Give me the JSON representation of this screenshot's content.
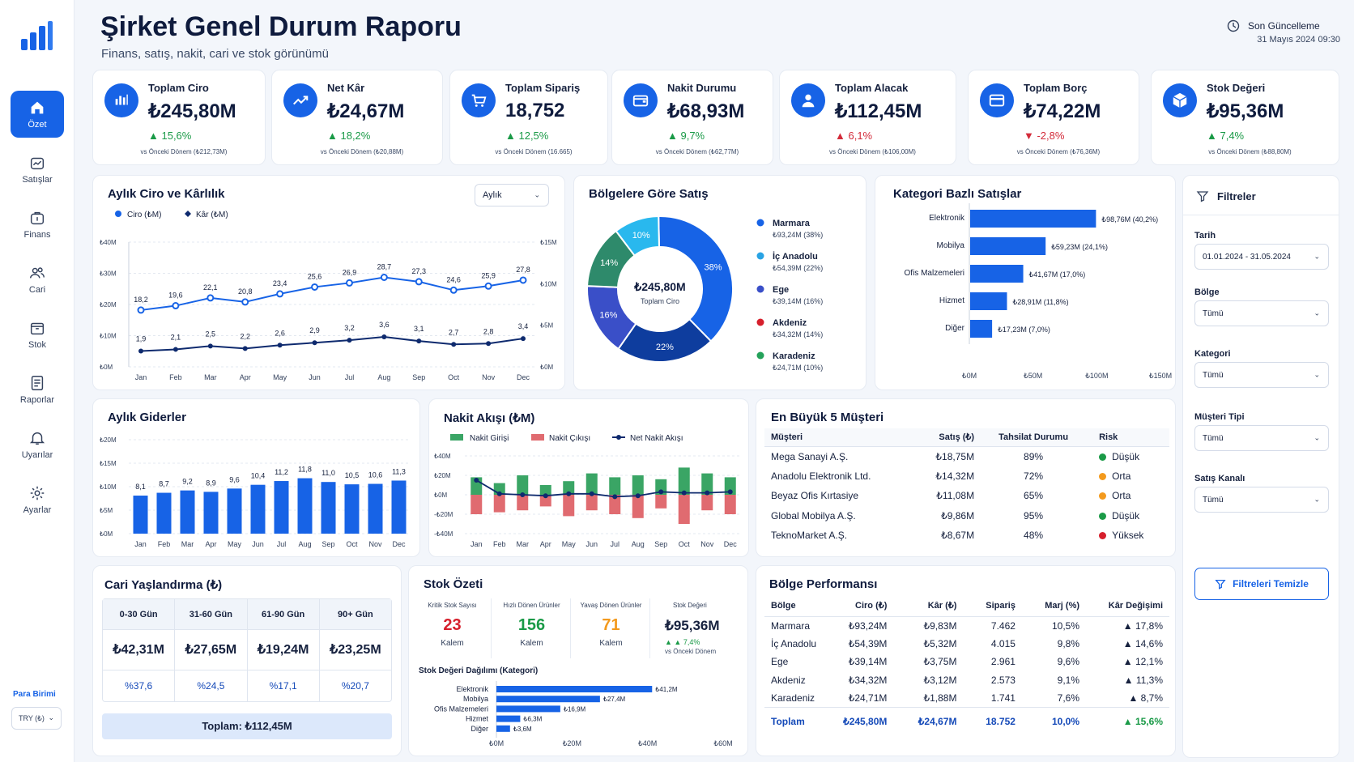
{
  "nav": {
    "items": [
      {
        "label": "Özet",
        "icon": "home-icon",
        "active": true
      },
      {
        "label": "Satışlar",
        "icon": "sales-icon"
      },
      {
        "label": "Finans",
        "icon": "finance-icon"
      },
      {
        "label": "Cari",
        "icon": "users-icon"
      },
      {
        "label": "Stok",
        "icon": "box-icon"
      },
      {
        "label": "Raporlar",
        "icon": "report-icon"
      },
      {
        "label": "Uyarılar",
        "icon": "bell-icon"
      },
      {
        "label": "Ayarlar",
        "icon": "gear-icon"
      }
    ],
    "currency_label": "Para Birimi",
    "currency_value": "TRY (₺)"
  },
  "header": {
    "title": "Şirket Genel Durum Raporu",
    "subtitle": "Finans, satış, nakit, cari ve stok görünümü",
    "updated_label": "Son Güncelleme",
    "updated_value": "31 Mayıs 2024 09:30"
  },
  "kpis": [
    {
      "title": "Toplam Ciro",
      "value": "₺245,80M",
      "change": "▲ 15,6%",
      "prev": "vs Önceki Dönem  (₺212,73M)",
      "icon": "bar-chart-icon",
      "neg": false
    },
    {
      "title": "Net Kâr",
      "value": "₺24,67M",
      "change": "▲ 18,2%",
      "prev": "vs Önceki Dönem  (₺20,88M)",
      "icon": "trend-up-icon",
      "neg": false
    },
    {
      "title": "Toplam Sipariş",
      "value": "18,752",
      "change": "▲ 12,5%",
      "prev": "vs Önceki Dönem  (16.665)",
      "icon": "cart-icon",
      "neg": false
    },
    {
      "title": "Nakit Durumu",
      "value": "₺68,93M",
      "change": "▲ 9,7%",
      "prev": "vs Önceki Dönem  (₺62,77M)",
      "icon": "wallet-icon",
      "neg": false
    },
    {
      "title": "Toplam Alacak",
      "value": "₺112,45M",
      "change": "▲ 6,1%",
      "prev": "vs Önceki Dönem  (₺106,00M)",
      "icon": "user-icon",
      "neg": true
    },
    {
      "title": "Toplam Borç",
      "value": "₺74,22M",
      "change": "▼ -2,8%",
      "prev": "vs Önceki Dönem  (₺76,36M)",
      "icon": "card-icon",
      "neg": true
    },
    {
      "title": "Stok Değeri",
      "value": "₺95,36M",
      "change": "▲ 7,4%",
      "prev": "vs Önceki Dönem  (₺88,80M)",
      "icon": "cube-icon",
      "neg": false
    }
  ],
  "monthly": {
    "title": "Aylık Ciro ve Kârlılık",
    "period": "Aylık",
    "legend_ciro": "Ciro (₺M)",
    "legend_kar": "Kâr (₺M)",
    "left_ticks": [
      "₺40M",
      "₺30M",
      "₺20M",
      "₺10M",
      "₺0M"
    ],
    "right_ticks": [
      "₺15M",
      "₺10M",
      "₺5M",
      "₺0M"
    ]
  },
  "regions_pie": {
    "title": "Bölgelere Göre Satış",
    "center_value": "₺245,80M",
    "center_label": "Toplam Ciro",
    "legend": [
      {
        "name": "Marmara",
        "detail": "₺93,24M (38%)",
        "color": "#1763e6"
      },
      {
        "name": "İç Anadolu",
        "detail": "₺54,39M (22%)",
        "color": "#29a3e4"
      },
      {
        "name": "Ege",
        "detail": "₺39,14M (16%)",
        "color": "#3a4fc8"
      },
      {
        "name": "Akdeniz",
        "detail": "₺34,32M (14%)",
        "color": "#d61f2c"
      },
      {
        "name": "Karadeniz",
        "detail": "₺24,71M (10%)",
        "color": "#24a25a"
      }
    ]
  },
  "category": {
    "title": "Kategori Bazlı Satışlar",
    "ticks": [
      "₺0M",
      "₺50M",
      "₺100M",
      "₺150M"
    ]
  },
  "expenses": {
    "title": "Aylık Giderler",
    "ticks": [
      "₺20M",
      "₺15M",
      "₺10M",
      "₺5M",
      "₺0M"
    ]
  },
  "cashflow": {
    "title": "Nakit Akışı (₺M)",
    "legend_in": "Nakit Girişi",
    "legend_out": "Nakit Çıkışı",
    "legend_net": "Net Nakit Akışı",
    "ticks": [
      "₺40M",
      "₺20M",
      "₺0M",
      "-₺20M",
      "-₺40M"
    ]
  },
  "customers": {
    "title": "En Büyük 5 Müşteri",
    "headers": [
      "Müşteri",
      "Satış (₺)",
      "Tahsilat Durumu",
      "Risk"
    ],
    "rows": [
      {
        "name": "Mega Sanayi A.Ş.",
        "sales": "₺18,75M",
        "coll": "89%",
        "risk": "Düşük",
        "color": "#1a9a47"
      },
      {
        "name": "Anadolu Elektronik Ltd.",
        "sales": "₺14,32M",
        "coll": "72%",
        "risk": "Orta",
        "color": "#f39a1e"
      },
      {
        "name": "Beyaz Ofis Kırtasiye",
        "sales": "₺11,08M",
        "coll": "65%",
        "risk": "Orta",
        "color": "#f39a1e"
      },
      {
        "name": "Global Mobilya A.Ş.",
        "sales": "₺9,86M",
        "coll": "95%",
        "risk": "Düşük",
        "color": "#1a9a47"
      },
      {
        "name": "TeknoMarket A.Ş.",
        "sales": "₺8,67M",
        "coll": "48%",
        "risk": "Yüksek",
        "color": "#d61f2c"
      }
    ]
  },
  "aging": {
    "title": "Cari Yaşlandırma (₺)",
    "cols": [
      {
        "h": "0-30 Gün",
        "v": "₺42,31M",
        "p": "%37,6"
      },
      {
        "h": "31-60 Gün",
        "v": "₺27,65M",
        "p": "%24,5"
      },
      {
        "h": "61-90 Gün",
        "v": "₺19,24M",
        "p": "%17,1"
      },
      {
        "h": "90+ Gün",
        "v": "₺23,25M",
        "p": "%20,7"
      }
    ],
    "total": "Toplam: ₺112,45M"
  },
  "stock": {
    "title": "Stok Özeti",
    "kpis": [
      {
        "label": "Kritik Stok Sayısı",
        "value": "23",
        "unit": "Kalem",
        "color": "#d61f2c"
      },
      {
        "label": "Hızlı Dönen Ürünler",
        "value": "156",
        "unit": "Kalem",
        "color": "#1a9a47"
      },
      {
        "label": "Yavaş Dönen Ürünler",
        "value": "71",
        "unit": "Kalem",
        "color": "#f39a1e"
      }
    ],
    "value_label": "Stok Değeri",
    "value": "₺95,36M",
    "value_change": "▲ 7,4%",
    "value_prev": "vs Önceki Dönem",
    "dist_title": "Stok Değeri Dağılımı (Kategori)",
    "ticks": [
      "₺0M",
      "₺20M",
      "₺40M",
      "₺60M"
    ]
  },
  "regionperf": {
    "title": "Bölge Performansı",
    "headers": [
      "Bölge",
      "Ciro (₺)",
      "Kâr (₺)",
      "Sipariş",
      "Marj (%)",
      "Kâr Değişimi"
    ],
    "rows": [
      [
        "Marmara",
        "₺93,24M",
        "₺9,83M",
        "7.462",
        "10,5%",
        "▲ 17,8%"
      ],
      [
        "İç Anadolu",
        "₺54,39M",
        "₺5,32M",
        "4.015",
        "9,8%",
        "▲ 14,6%"
      ],
      [
        "Ege",
        "₺39,14M",
        "₺3,75M",
        "2.961",
        "9,6%",
        "▲ 12,1%"
      ],
      [
        "Akdeniz",
        "₺34,32M",
        "₺3,12M",
        "2.573",
        "9,1%",
        "▲ 11,3%"
      ],
      [
        "Karadeniz",
        "₺24,71M",
        "₺1,88M",
        "1.741",
        "7,6%",
        "▲ 8,7%"
      ]
    ],
    "total": [
      "Toplam",
      "₺245,80M",
      "₺24,67M",
      "18.752",
      "10,0%",
      "▲ 15,6%"
    ]
  },
  "filters": {
    "title": "Filtreler",
    "fields": [
      {
        "label": "Tarih",
        "value": "01.01.2024 - 31.05.2024"
      },
      {
        "label": "Bölge",
        "value": "Tümü"
      },
      {
        "label": "Kategori",
        "value": "Tümü"
      },
      {
        "label": "Müşteri Tipi",
        "value": "Tümü"
      },
      {
        "label": "Satış Kanalı",
        "value": "Tümü"
      }
    ],
    "clear": "Filtreleri Temizle"
  },
  "chart_data": [
    {
      "type": "line",
      "title": "Aylık Ciro ve Kârlılık",
      "categories": [
        "Jan",
        "Feb",
        "Mar",
        "Apr",
        "May",
        "Jun",
        "Jul",
        "Aug",
        "Sep",
        "Oct",
        "Nov",
        "Dec"
      ],
      "series": [
        {
          "name": "Ciro (₺M)",
          "axis": "left",
          "values": [
            18.2,
            19.6,
            22.1,
            20.8,
            23.4,
            25.6,
            26.9,
            28.7,
            27.3,
            24.6,
            25.9,
            27.8
          ],
          "labels": [
            "18,2",
            "19,6",
            "22,1",
            "20,8",
            "23,4",
            "25,6",
            "26,9",
            "28,7",
            "27,3",
            "24,6",
            "25,9",
            "27,8"
          ]
        },
        {
          "name": "Kâr (₺M)",
          "axis": "right",
          "values": [
            1.9,
            2.1,
            2.5,
            2.2,
            2.6,
            2.9,
            3.2,
            3.6,
            3.1,
            2.7,
            2.8,
            3.4
          ],
          "labels": [
            "1,9",
            "2,1",
            "2,5",
            "2,2",
            "2,6",
            "2,9",
            "3,2",
            "3,6",
            "3,1",
            "2,7",
            "2,8",
            "3,4"
          ]
        }
      ],
      "ylim": [
        0,
        40
      ],
      "y2lim": [
        0,
        15
      ],
      "grid": true,
      "legend": "top-left"
    },
    {
      "type": "pie",
      "title": "Bölgelere Göre Satış",
      "categories": [
        "Marmara",
        "İç Anadolu",
        "Ege",
        "Akdeniz",
        "Karadeniz"
      ],
      "values": [
        93.24,
        54.39,
        39.14,
        34.32,
        24.71
      ],
      "slices": [
        {
          "pct": 38,
          "label": "38%",
          "color": "#1763e6"
        },
        {
          "pct": 22,
          "label": "22%",
          "color": "#0e3d9e"
        },
        {
          "pct": 16,
          "label": "16%",
          "color": "#3a4fc8"
        },
        {
          "pct": 14,
          "label": "14%",
          "color": "#2e8a6b"
        },
        {
          "pct": 10,
          "label": "10%",
          "color": "#29b8ee"
        }
      ]
    },
    {
      "type": "bar",
      "title": "Kategori Bazlı Satışlar",
      "orientation": "horizontal",
      "categories": [
        "Elektronik",
        "Mobilya",
        "Ofis Malzemeleri",
        "Hizmet",
        "Diğer"
      ],
      "values": [
        98.76,
        59.23,
        41.67,
        28.91,
        17.23
      ],
      "labels": [
        "₺98,76M (40,2%)",
        "₺59,23M (24,1%)",
        "₺41,67M (17,0%)",
        "₺28,91M (11,8%)",
        "₺17,23M (7,0%)"
      ],
      "xlim": [
        0,
        150
      ]
    },
    {
      "type": "bar",
      "title": "Aylık Giderler",
      "categories": [
        "Jan",
        "Feb",
        "Mar",
        "Apr",
        "May",
        "Jun",
        "Jul",
        "Aug",
        "Sep",
        "Oct",
        "Nov",
        "Dec"
      ],
      "values": [
        8.1,
        8.7,
        9.2,
        8.9,
        9.6,
        10.4,
        11.2,
        11.8,
        11.0,
        10.5,
        10.6,
        11.3
      ],
      "labels": [
        "8,1",
        "8,7",
        "9,2",
        "8,9",
        "9,6",
        "10,4",
        "11,2",
        "11,8",
        "11,0",
        "10,5",
        "10,6",
        "11,3"
      ],
      "ylim": [
        0,
        20
      ]
    },
    {
      "type": "bar",
      "title": "Nakit Akışı (₺M)",
      "categories": [
        "Jan",
        "Feb",
        "Mar",
        "Apr",
        "May",
        "Jun",
        "Jul",
        "Aug",
        "Sep",
        "Oct",
        "Nov",
        "Dec"
      ],
      "series": [
        {
          "name": "Nakit Girişi",
          "values": [
            18,
            12,
            20,
            10,
            14,
            22,
            18,
            20,
            16,
            28,
            22,
            18
          ]
        },
        {
          "name": "Nakit Çıkışı",
          "values": [
            -20,
            -18,
            -16,
            -12,
            -22,
            -16,
            -20,
            -24,
            -14,
            -30,
            -16,
            -20
          ]
        },
        {
          "name": "Net Nakit Akışı",
          "values": [
            15,
            1,
            0,
            -1,
            1,
            1,
            -2,
            -1,
            3,
            2,
            2,
            3
          ]
        }
      ],
      "ylim": [
        -40,
        40
      ]
    },
    {
      "type": "bar",
      "title": "Stok Değeri Dağılımı (Kategori)",
      "orientation": "horizontal",
      "categories": [
        "Elektronik",
        "Mobilya",
        "Ofis Malzemeleri",
        "Hizmet",
        "Diğer"
      ],
      "values": [
        41.2,
        27.4,
        16.9,
        6.3,
        3.6
      ],
      "labels": [
        "₺41,2M",
        "₺27,4M",
        "₺16,9M",
        "₺6,3M",
        "₺3,6M"
      ],
      "xlim": [
        0,
        60
      ]
    }
  ]
}
